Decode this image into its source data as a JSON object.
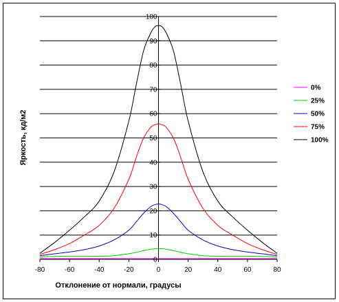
{
  "chart_data": {
    "type": "line",
    "title": "",
    "xlabel": "Отклонение от нормали, градусы",
    "ylabel": "Яркость, кд/м2",
    "xlim": [
      -80,
      80
    ],
    "ylim": [
      0,
      100
    ],
    "x_ticks": [
      -80,
      -60,
      -40,
      -20,
      0,
      20,
      40,
      60,
      80
    ],
    "y_ticks": [
      0,
      10,
      20,
      30,
      40,
      50,
      60,
      70,
      80,
      90,
      100
    ],
    "grid": "horizontal",
    "legend_position": "right",
    "x": [
      -80,
      -70,
      -60,
      -50,
      -40,
      -30,
      -20,
      -15,
      -10,
      -5,
      -2,
      0,
      2,
      5,
      10,
      15,
      20,
      30,
      40,
      50,
      60,
      70,
      80
    ],
    "series": [
      {
        "name": "0%",
        "color": "#ff00ff",
        "values": [
          0.3,
          0.3,
          0.3,
          0.3,
          0.3,
          0.3,
          0.3,
          0.3,
          0.3,
          0.3,
          0.3,
          0.3,
          0.3,
          0.3,
          0.3,
          0.3,
          0.3,
          0.3,
          0.3,
          0.3,
          0.3,
          0.3,
          0.3
        ]
      },
      {
        "name": "25%",
        "color": "#00cc00",
        "values": [
          1.0,
          1.2,
          1.3,
          1.3,
          1.3,
          1.5,
          2.3,
          2.9,
          3.6,
          4.2,
          4.4,
          4.4,
          4.4,
          4.2,
          3.6,
          2.9,
          2.3,
          1.5,
          1.3,
          1.3,
          1.3,
          1.2,
          1.0
        ]
      },
      {
        "name": "50%",
        "color": "#0000cc",
        "values": [
          1.5,
          2.3,
          3.0,
          4.0,
          5.5,
          8.0,
          12.0,
          15.5,
          19.0,
          21.8,
          22.6,
          22.8,
          22.6,
          21.8,
          19.0,
          15.5,
          12.0,
          8.0,
          5.5,
          4.0,
          3.0,
          2.3,
          1.5
        ]
      },
      {
        "name": "75%",
        "color": "#ff0000",
        "values": [
          2.0,
          4.0,
          6.5,
          10.0,
          14.0,
          21.0,
          33.0,
          42.0,
          50.0,
          54.5,
          55.5,
          55.8,
          55.5,
          54.5,
          50.0,
          42.0,
          33.0,
          21.0,
          14.0,
          10.0,
          6.5,
          4.0,
          2.0
        ]
      },
      {
        "name": "100%",
        "color": "#000000",
        "values": [
          2.5,
          7.0,
          12.0,
          17.5,
          24.0,
          36.0,
          57.0,
          72.0,
          86.0,
          93.5,
          96.0,
          96.2,
          96.0,
          93.5,
          86.0,
          72.0,
          57.0,
          36.0,
          24.0,
          17.5,
          12.0,
          7.0,
          2.5
        ]
      }
    ]
  }
}
